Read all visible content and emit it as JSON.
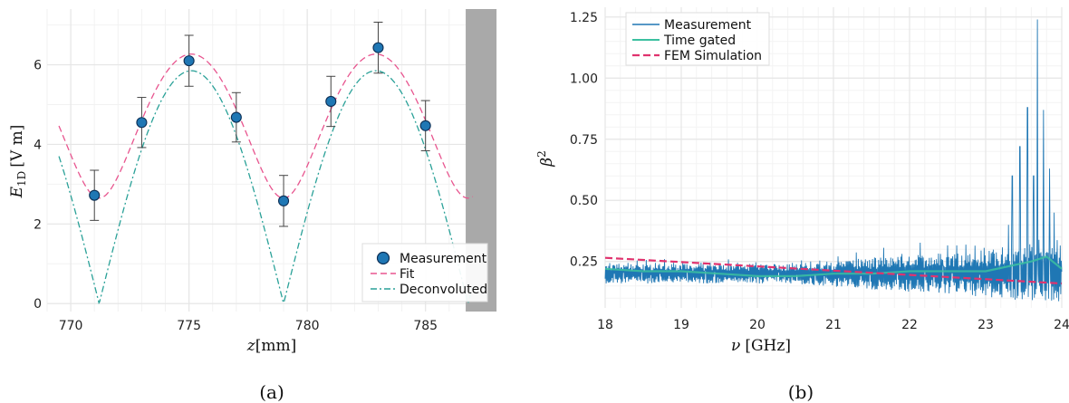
{
  "colors": {
    "measurement": "#1f77b4",
    "fit": "#e8558f",
    "deconvoluted": "#2aa198",
    "time_gated": "#3cc0a0",
    "fem": "#e0336e",
    "shade": "#a9a9a9",
    "grid": "#e6e6e6"
  },
  "panel_a": {
    "caption": "(a)",
    "xlabel_var": "z",
    "xlabel_unit": "[mm]",
    "ylabel_var": "E",
    "ylabel_sub": "1D",
    "ylabel_unit": "[V m]",
    "legend": [
      "Measurement",
      "Fit",
      "Deconvoluted"
    ]
  },
  "panel_b": {
    "caption": "(b)",
    "xlabel_var": "ν",
    "xlabel_unit": "[GHz]",
    "ylabel_var": "β",
    "ylabel_sup": "2",
    "legend": [
      "Measurement",
      "Time gated",
      "FEM Simulation"
    ]
  },
  "chart_data": [
    {
      "type": "scatter",
      "panel": "a",
      "xlim": [
        769,
        788
      ],
      "ylim": [
        -0.2,
        7.4
      ],
      "xticks": [
        770,
        775,
        780,
        785
      ],
      "yticks": [
        0,
        2,
        4,
        6
      ],
      "grid": true,
      "legend_position": "bottom-right",
      "shaded_region": [
        786.7,
        788
      ],
      "series": [
        {
          "name": "Measurement",
          "kind": "points-with-errorbars",
          "x": [
            771,
            773,
            775,
            777,
            779,
            781,
            783,
            785
          ],
          "y": [
            2.72,
            4.55,
            6.1,
            4.68,
            2.58,
            5.08,
            6.43,
            4.47
          ],
          "yerr": [
            0.63,
            0.63,
            0.64,
            0.62,
            0.64,
            0.63,
            0.64,
            0.63
          ]
        },
        {
          "name": "Fit",
          "kind": "line",
          "model": "sqrt(A^2 + B^2 cos^2(k(z - z0)))",
          "params": {
            "A": 2.65,
            "B": 5.68,
            "k": 0.4028,
            "z0": 775.1
          },
          "x_range": [
            769.5,
            787
          ]
        },
        {
          "name": "Deconvoluted",
          "kind": "line",
          "model": "C |cos(k(z - z0))|",
          "params": {
            "C": 5.85,
            "k": 0.4028,
            "z0": 775.1
          },
          "x_range": [
            769.5,
            787
          ]
        }
      ]
    },
    {
      "type": "line",
      "panel": "b",
      "xlim": [
        18,
        24
      ],
      "ylim": [
        0.06,
        1.29
      ],
      "xticks": [
        18,
        19,
        20,
        21,
        22,
        23,
        24
      ],
      "yticks": [
        0.25,
        0.5,
        0.75,
        1.0,
        1.25
      ],
      "grid": true,
      "legend_position": "top-left",
      "series": [
        {
          "name": "Measurement",
          "kind": "noisy-line",
          "x_range": [
            18,
            24
          ],
          "baseline": 0.2,
          "oscillation_amplitude": [
            0.04,
            0.12
          ],
          "spikes": [
            {
              "x": 23.3,
              "y": 0.4
            },
            {
              "x": 23.35,
              "y": 0.6
            },
            {
              "x": 23.45,
              "y": 0.72
            },
            {
              "x": 23.55,
              "y": 0.88
            },
            {
              "x": 23.63,
              "y": 0.6
            },
            {
              "x": 23.68,
              "y": 1.24
            },
            {
              "x": 23.76,
              "y": 0.87
            },
            {
              "x": 23.84,
              "y": 0.63
            },
            {
              "x": 23.9,
              "y": 0.45
            }
          ]
        },
        {
          "name": "Time gated",
          "kind": "line",
          "x": [
            18,
            18.5,
            19,
            19.5,
            20,
            20.5,
            21,
            21.5,
            22,
            22.5,
            23,
            23.3,
            23.6,
            23.8,
            24
          ],
          "y": [
            0.22,
            0.21,
            0.21,
            0.2,
            0.19,
            0.19,
            0.2,
            0.2,
            0.21,
            0.21,
            0.21,
            0.23,
            0.25,
            0.27,
            0.22
          ]
        },
        {
          "name": "FEM Simulation",
          "kind": "dashed-line",
          "x": [
            18,
            24
          ],
          "y": [
            0.265,
            0.16
          ]
        }
      ]
    }
  ]
}
